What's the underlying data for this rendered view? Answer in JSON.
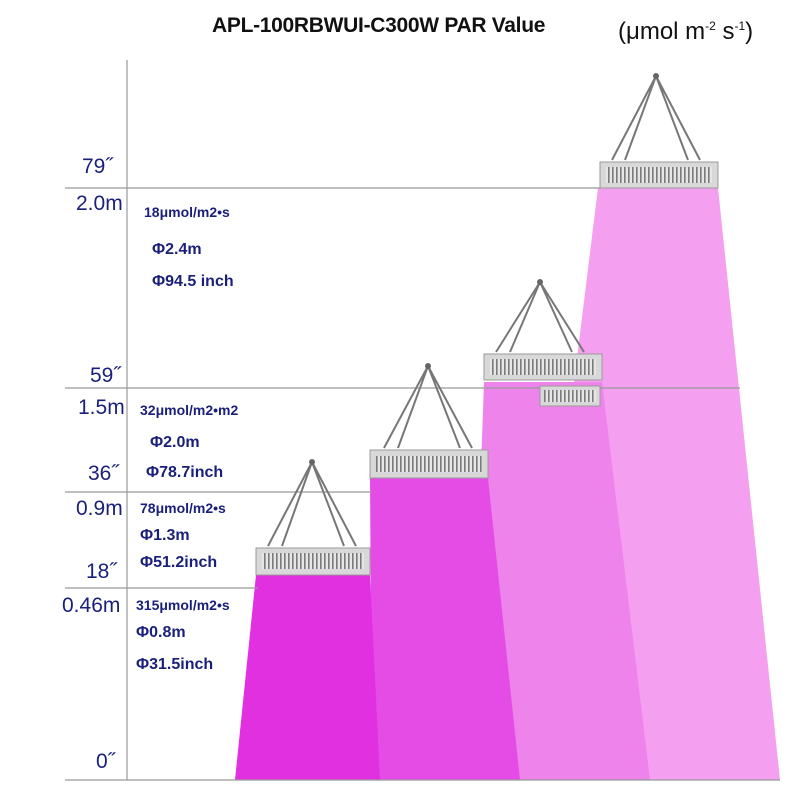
{
  "title": "APL-100RBWUI-C300W  PAR Value",
  "unit": {
    "base": "(μmol m",
    "exp1": "-2",
    "mid": " s",
    "exp2": "-1",
    "end": ")"
  },
  "height_labels": {
    "h79": "79˝",
    "h2m": "2.0m",
    "h59": "59˝",
    "h15m": "1.5m",
    "h36": "36˝",
    "h09m": "0.9m",
    "h18": "18˝",
    "h046m": "0.46m",
    "h0": "0˝"
  },
  "levels": [
    {
      "par": "18μmol/m2•s",
      "diameter_m": "Φ2.4m",
      "diameter_in": "Φ94.5 inch"
    },
    {
      "par": "32μmol/m2•m2",
      "diameter_m": "Φ2.0m",
      "diameter_in": "Φ78.7inch"
    },
    {
      "par": "78μmol/m2•s",
      "diameter_m": "Φ1.3m",
      "diameter_in": "Φ51.2inch"
    },
    {
      "par": "315μmol/m2•s",
      "diameter_m": "Φ0.8m",
      "diameter_in": "Φ31.5inch"
    }
  ],
  "colors": {
    "light_far": "#f49ff0",
    "light_1_5": "#ef83ec",
    "light_0_9": "#e54ce6",
    "light_0_46": "#e030e0",
    "label_text": "#1a1f7a",
    "guide_line": "#999999"
  }
}
